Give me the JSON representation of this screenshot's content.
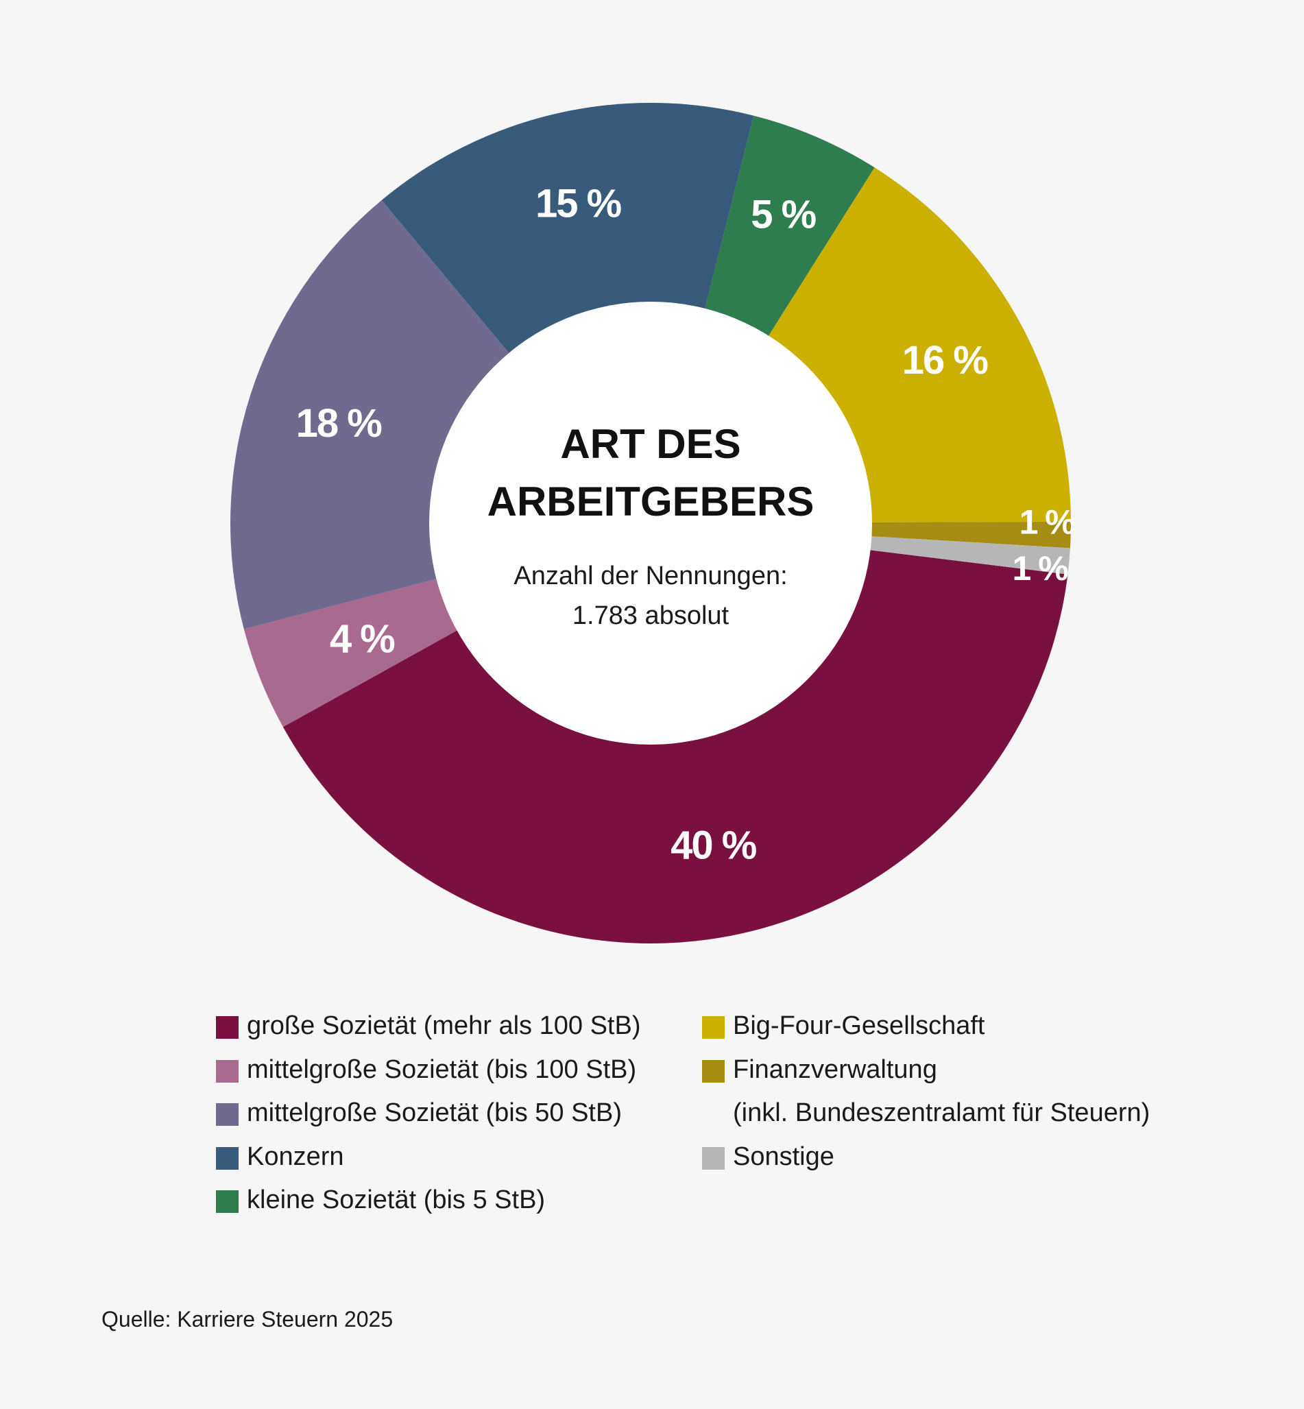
{
  "chart_data": {
    "type": "pie",
    "variant": "donut",
    "title": "ART DES ARBEITGEBERS",
    "title_lines": [
      "ART DES",
      "ARBEITGEBERS"
    ],
    "subtitle_lines": [
      "Anzahl der Nennungen:",
      "1.783 absolut"
    ],
    "unit": "%",
    "slices": [
      {
        "name": "große Sozietät (mehr als 100 StB)",
        "value": 40,
        "label": "40 %",
        "color": "#7a1040"
      },
      {
        "name": "mittelgroße Sozietät (bis 100 StB)",
        "value": 4,
        "label": "4 %",
        "color": "#a86b8f"
      },
      {
        "name": "mittelgroße Sozietät (bis 50 StB)",
        "value": 18,
        "label": "18 %",
        "color": "#716a8f"
      },
      {
        "name": "Konzern",
        "value": 15,
        "label": "15 %",
        "color": "#385b7c"
      },
      {
        "name": "kleine Sozietät (bis 5 StB)",
        "value": 5,
        "label": "5 %",
        "color": "#2e7d4e"
      },
      {
        "name": "Big-Four-Gesellschaft",
        "value": 16,
        "label": "16 %",
        "color": "#ccb000"
      },
      {
        "name": "Finanzverwaltung (inkl. Bundeszentralamt für Steuern)",
        "value": 1,
        "label": "1 %",
        "color": "#a78c14"
      },
      {
        "name": "Sonstige",
        "value": 1,
        "label": "1 %",
        "color": "#b6b6b6"
      }
    ],
    "legend_left": [
      {
        "text": "große Sozietät (mehr als 100 StB)",
        "color": "#7a1040"
      },
      {
        "text": "mittelgroße Sozietät (bis 100 StB)",
        "color": "#a86b8f"
      },
      {
        "text": "mittelgroße Sozietät (bis 50 StB)",
        "color": "#716a8f"
      },
      {
        "text": "Konzern",
        "color": "#385b7c"
      },
      {
        "text": "kleine Sozietät (bis 5 StB)",
        "color": "#2e7d4e"
      }
    ],
    "legend_right": [
      {
        "text": "Big-Four-Gesellschaft",
        "color": "#ccb000"
      },
      {
        "text": "Finanzverwaltung",
        "subtext": "(inkl. Bundeszentralamt für Steuern)",
        "color": "#a78c14"
      },
      {
        "text": "Sonstige",
        "color": "#b6b6b6"
      }
    ],
    "legend_position": "bottom"
  },
  "source": "Quelle: Karriere Steuern 2025"
}
